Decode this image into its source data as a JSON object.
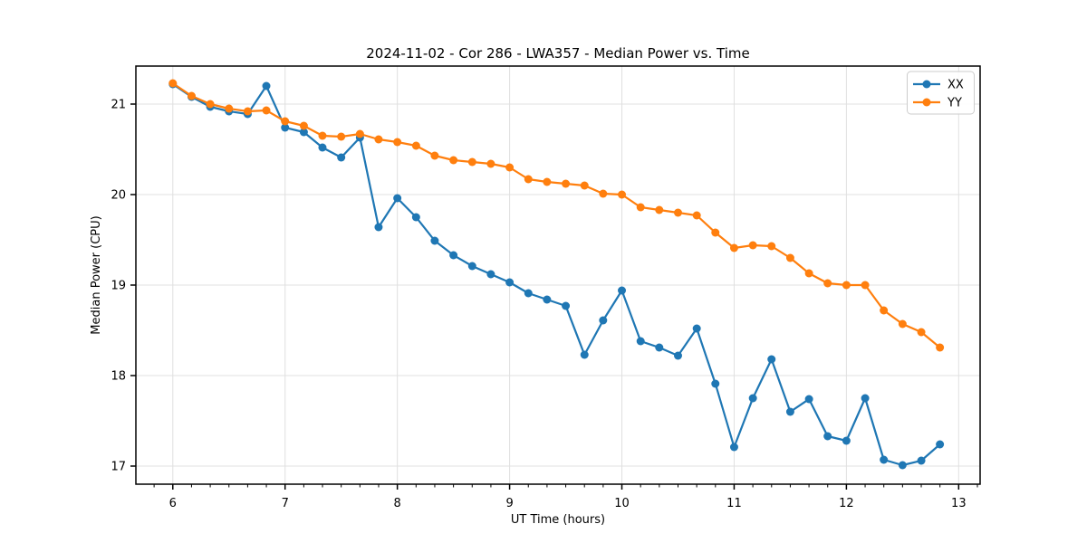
{
  "chart_data": {
    "type": "line",
    "title": "2024-11-02 - Cor 286 - LWA357 - Median Power vs. Time",
    "xlabel": "UT Time (hours)",
    "ylabel": "Median Power (CPU)",
    "xlim": [
      5.671,
      13.191
    ],
    "ylim": [
      16.8,
      21.42
    ],
    "xticks": [
      6,
      7,
      8,
      9,
      10,
      11,
      12,
      13
    ],
    "yticks": [
      17,
      18,
      19,
      20,
      21
    ],
    "minor_tick_step_x": 0.166667,
    "grid": "major",
    "grid_color": "#e0e0e0",
    "legend_position": "upper right",
    "x": [
      6.0,
      6.167,
      6.333,
      6.5,
      6.667,
      6.833,
      7.0,
      7.167,
      7.333,
      7.5,
      7.667,
      7.833,
      8.0,
      8.167,
      8.333,
      8.5,
      8.667,
      8.833,
      9.0,
      9.167,
      9.333,
      9.5,
      9.667,
      9.833,
      10.0,
      10.167,
      10.333,
      10.5,
      10.667,
      10.833,
      11.0,
      11.167,
      11.333,
      11.5,
      11.667,
      11.833,
      12.0,
      12.167,
      12.333,
      12.5,
      12.667,
      12.833
    ],
    "series": [
      {
        "name": "XX",
        "color": "#1f77b4",
        "values": [
          21.22,
          21.08,
          20.97,
          20.92,
          20.89,
          21.2,
          20.74,
          20.69,
          20.52,
          20.41,
          20.63,
          19.64,
          19.96,
          19.75,
          19.49,
          19.33,
          19.21,
          19.12,
          19.03,
          18.91,
          18.84,
          18.77,
          18.23,
          18.61,
          18.94,
          18.38,
          18.31,
          18.22,
          18.52,
          17.91,
          17.21,
          17.75,
          18.18,
          17.6,
          17.74,
          17.33,
          17.28,
          17.75,
          17.07,
          17.01,
          17.06,
          17.24
        ]
      },
      {
        "name": "YY",
        "color": "#ff7f0e",
        "values": [
          21.23,
          21.09,
          21.0,
          20.95,
          20.92,
          20.93,
          20.81,
          20.76,
          20.65,
          20.64,
          20.67,
          20.61,
          20.58,
          20.54,
          20.43,
          20.38,
          20.36,
          20.34,
          20.3,
          20.17,
          20.14,
          20.12,
          20.1,
          20.01,
          20.0,
          19.86,
          19.83,
          19.8,
          19.77,
          19.58,
          19.41,
          19.44,
          19.43,
          19.3,
          19.13,
          19.02,
          19.0,
          19.0,
          18.72,
          18.57,
          18.48,
          18.31
        ]
      }
    ]
  }
}
